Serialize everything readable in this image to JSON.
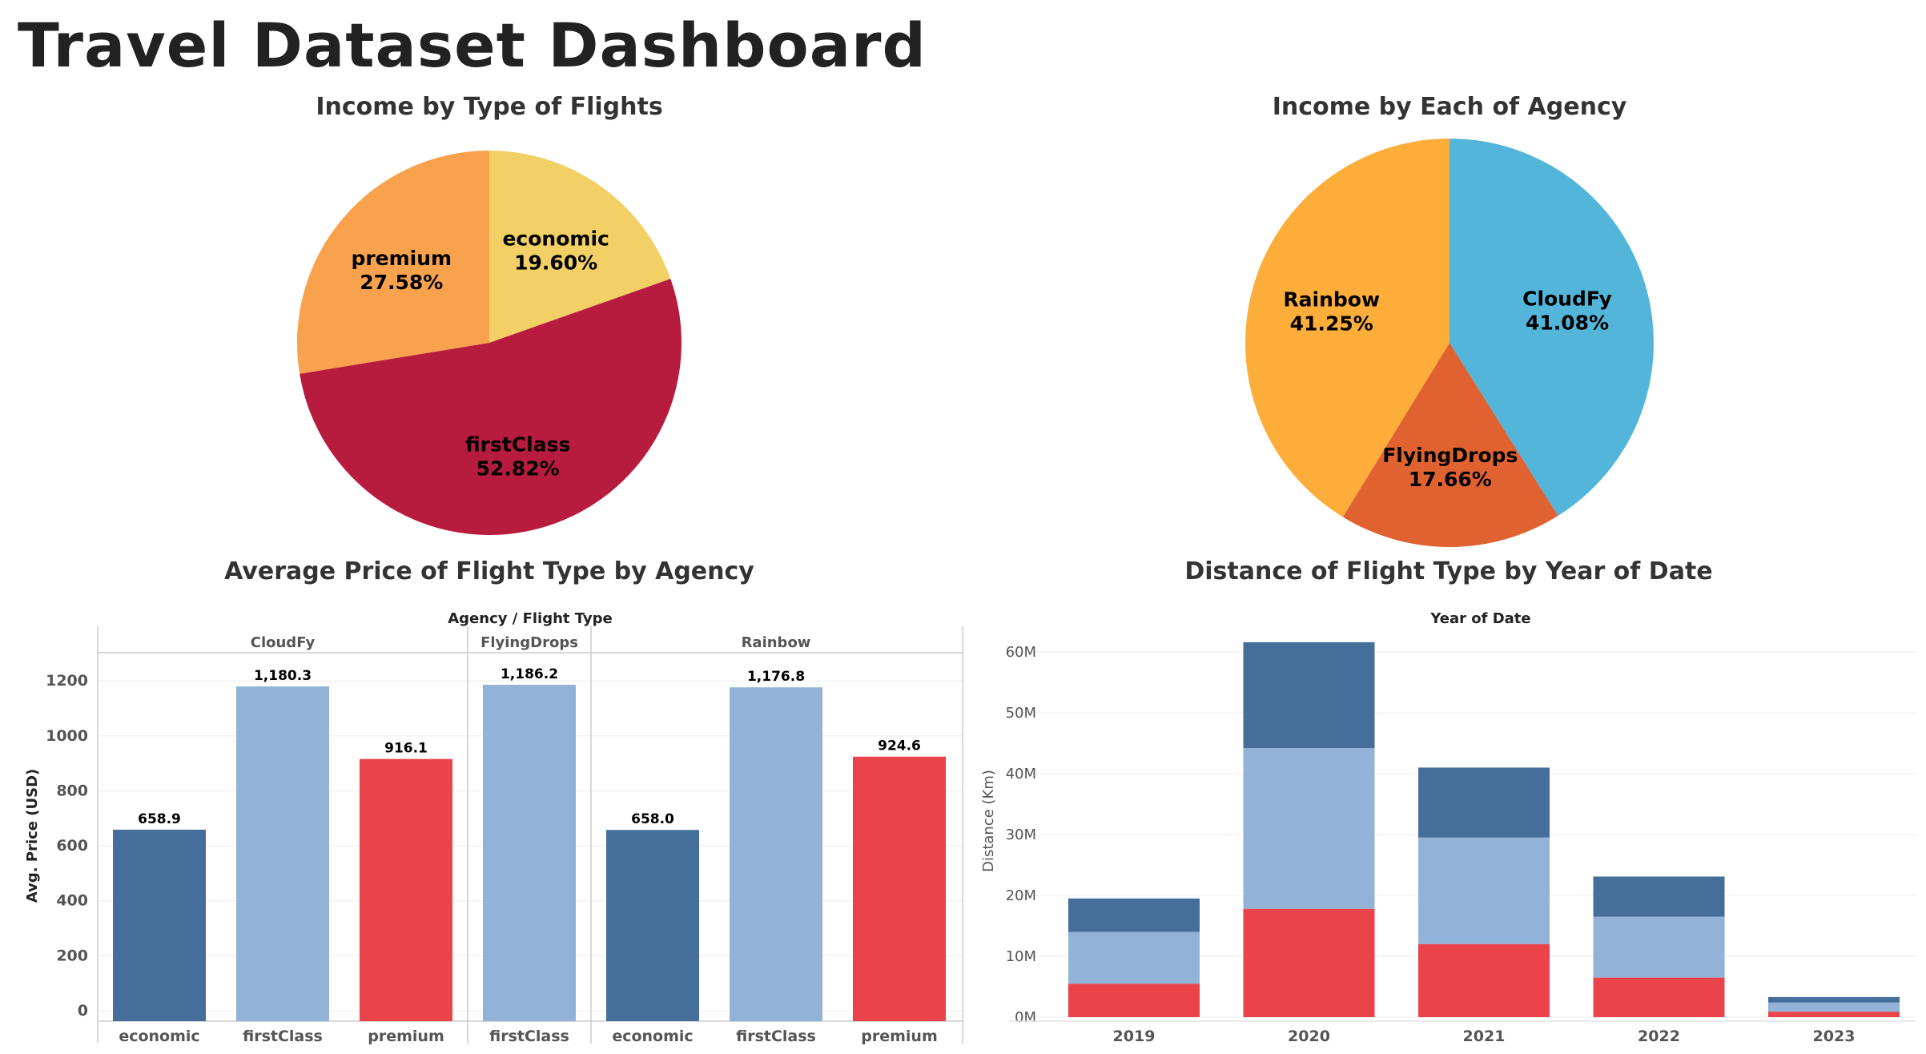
{
  "page": {
    "title": "Travel Dataset Dashboard"
  },
  "colors": {
    "economic": "#466e9b",
    "firstClass": "#92b2d7",
    "premium": "#ea4349"
  },
  "chart_data": [
    {
      "type": "pie",
      "title": "Income by Type of Flights",
      "slices": [
        {
          "label": "economic",
          "value": 19.6,
          "display": "19.60%",
          "color": "#f2d066"
        },
        {
          "label": "firstClass",
          "value": 52.82,
          "display": "52.82%",
          "color": "#b71c3e"
        },
        {
          "label": "premium",
          "value": 27.58,
          "display": "27.58%",
          "color": "#f9a24e"
        }
      ]
    },
    {
      "type": "pie",
      "title": "Income by Each of Agency",
      "slices": [
        {
          "label": "CloudFy",
          "value": 41.08,
          "display": "41.08%",
          "color": "#52b5d9"
        },
        {
          "label": "FlyingDrops",
          "value": 17.66,
          "display": "17.66%",
          "color": "#e06230"
        },
        {
          "label": "Rainbow",
          "value": 41.25,
          "display": "41.25%",
          "color": "#fdad3a"
        }
      ]
    },
    {
      "type": "bar",
      "title": "Average Price of Flight Type by Agency",
      "header": "Agency  /  Flight Type",
      "ylabel": "Avg. Price (USD)",
      "ylim": [
        0,
        1300
      ],
      "yticks": [
        "0",
        "200",
        "400",
        "600",
        "800",
        "1000",
        "1200"
      ],
      "groups": [
        {
          "name": "CloudFy",
          "bars": [
            {
              "category": "economic",
              "value": 658.9,
              "label": "658.9"
            },
            {
              "category": "firstClass",
              "value": 1180.3,
              "label": "1,180.3"
            },
            {
              "category": "premium",
              "value": 916.1,
              "label": "916.1"
            }
          ]
        },
        {
          "name": "FlyingDrops",
          "bars": [
            {
              "category": "firstClass",
              "value": 1186.2,
              "label": "1,186.2"
            }
          ]
        },
        {
          "name": "Rainbow",
          "bars": [
            {
              "category": "economic",
              "value": 658.0,
              "label": "658.0"
            },
            {
              "category": "firstClass",
              "value": 1176.8,
              "label": "1,176.8"
            },
            {
              "category": "premium",
              "value": 924.6,
              "label": "924.6"
            }
          ]
        }
      ]
    },
    {
      "type": "bar",
      "stacked": true,
      "title": "Distance of Flight Type by Year of Date",
      "header": "Year of Date",
      "ylabel": "Distance (Km)",
      "ylim": [
        0,
        65
      ],
      "yticks": [
        "0M",
        "10M",
        "20M",
        "30M",
        "40M",
        "50M",
        "60M"
      ],
      "categories": [
        "2019",
        "2020",
        "2021",
        "2022",
        "2023"
      ],
      "series": [
        {
          "category": "premium",
          "values": [
            5.5,
            17.8,
            12.0,
            6.5,
            0.9
          ]
        },
        {
          "category": "firstClass",
          "values": [
            8.5,
            26.4,
            17.5,
            10.0,
            1.5
          ]
        },
        {
          "category": "economic",
          "values": [
            5.5,
            17.4,
            11.5,
            6.6,
            0.9
          ]
        }
      ]
    }
  ]
}
